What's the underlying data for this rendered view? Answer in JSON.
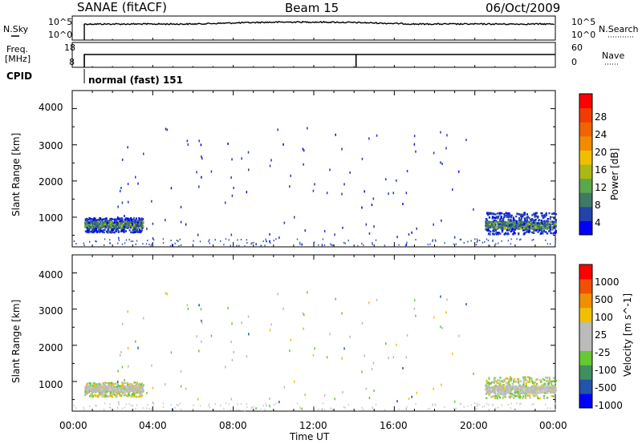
{
  "header": {
    "title": "SANAE (fitACF)",
    "beam": "Beam 15",
    "date": "06/Oct/2009"
  },
  "noise_panel": {
    "left_label": "N.Sky",
    "right_label": "N.Search",
    "left_ticks": [
      "10^5",
      "10^0"
    ],
    "right_ticks": [
      "10^5",
      "10^0"
    ],
    "scale": "log"
  },
  "freq_panel": {
    "left_label_line1": "Freq.",
    "left_label_line2": "[MHz]",
    "right_label": "Nave",
    "left_ticks": [
      "18",
      "8"
    ],
    "right_ticks": [
      "60",
      "0"
    ],
    "freq_range": [
      8,
      18
    ],
    "nave_range": [
      0,
      60
    ]
  },
  "cpid": {
    "label": "CPID",
    "mode": "normal (fast) 151"
  },
  "power_panel": {
    "ylabel": "Slant Range [km]",
    "yticks": [
      "4000",
      "3000",
      "2000",
      "1000"
    ],
    "colorbar_label": "Power [dB]",
    "colorbar_ticks": [
      "28",
      "24",
      "20",
      "16",
      "12",
      "8",
      "4"
    ],
    "colorbar_colors": [
      "#0000ff",
      "#2244aa",
      "#3f7a64",
      "#5aa84a",
      "#aab814",
      "#f0c000",
      "#f08c00",
      "#f06400",
      "#f03c00",
      "#ff0000"
    ]
  },
  "velocity_panel": {
    "ylabel": "Slant Range [km]",
    "yticks": [
      "4000",
      "3000",
      "2000",
      "1000"
    ],
    "colorbar_label": "Velocity [m s^-1]",
    "colorbar_ticks": [
      "1000",
      "500",
      "100",
      "25",
      "-25",
      "-100",
      "-500",
      "-1000"
    ],
    "colorbar_colors": [
      "#0000ff",
      "#2255aa",
      "#3f8f5f",
      "#66c833",
      "#bbbbbb",
      "#bbbbbb",
      "#f0c000",
      "#f09000",
      "#f05000",
      "#ff0000"
    ]
  },
  "x_axis": {
    "label": "Time UT",
    "ticks": [
      "00:00",
      "04:00",
      "08:00",
      "12:00",
      "16:00",
      "20:00",
      "00:00"
    ]
  },
  "chart_data": {
    "type": "heatmap",
    "x_range_hours": [
      0,
      24
    ],
    "y_range_km": [
      180,
      4500
    ],
    "scatter_groups": [
      {
        "name": "early",
        "t_start": 0.6,
        "t_end": 3.5,
        "range_km": [
          600,
          1000
        ],
        "core_range_km": [
          730,
          900
        ]
      },
      {
        "name": "late",
        "t_start": 20.5,
        "t_end": 24,
        "range_km": [
          550,
          1150
        ],
        "core_range_km": [
          700,
          900
        ]
      }
    ],
    "cpid_change_hour": 14.1,
    "noise_start_hour": 0.6,
    "frequency_level_mhz": 12
  }
}
